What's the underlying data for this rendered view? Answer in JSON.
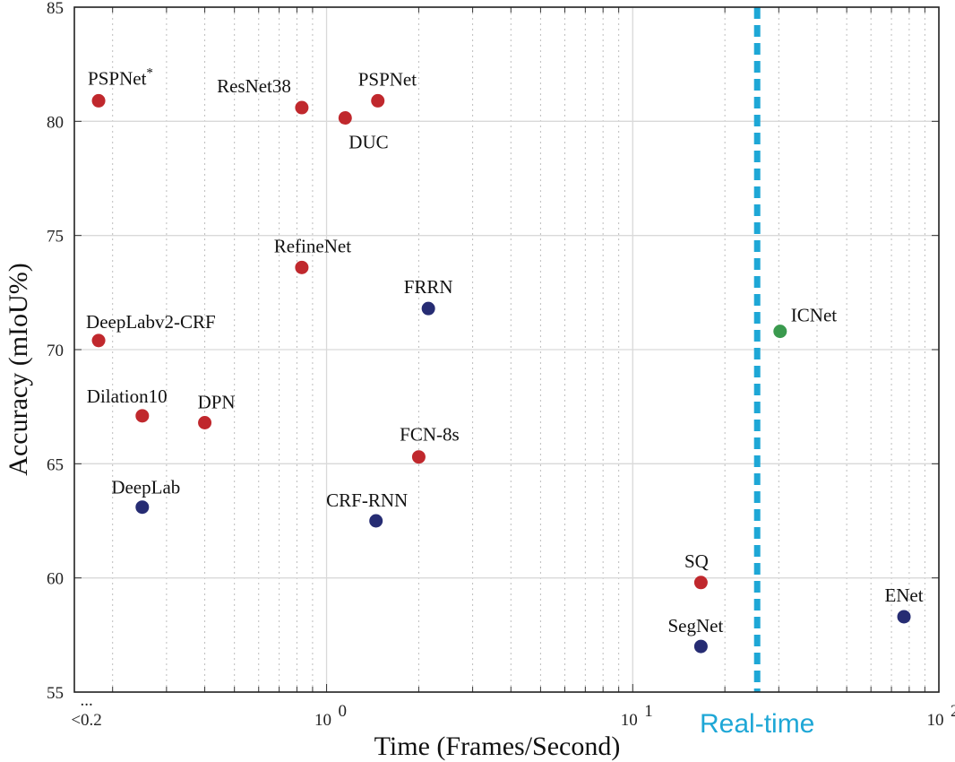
{
  "chart_data": {
    "type": "scatter",
    "xscale": "log",
    "xlim": [
      0.15,
      100
    ],
    "ylim": [
      55,
      85
    ],
    "xlabel": "Time (Frames/Second)",
    "ylabel": "Accuracy (mIoU%)",
    "grid": true,
    "x_ticks": [
      {
        "value": 0.16,
        "label": "<0.2"
      },
      {
        "value": 1,
        "label": "10",
        "exp": "0"
      },
      {
        "value": 10,
        "label": "10",
        "exp": "1"
      },
      {
        "value": 100,
        "label": "10",
        "exp": "2"
      }
    ],
    "x_ellipsis_label": "...",
    "y_ticks": [
      55,
      60,
      65,
      70,
      75,
      80,
      85
    ],
    "realtime": {
      "x": 25.5,
      "label": "Real-time",
      "color": "#1ea7d6"
    },
    "colors": {
      "red": "#c0282d",
      "blue": "#262c73",
      "green": "#3a9a4e"
    },
    "points": [
      {
        "name": "PSPNet",
        "sup": "*",
        "x": 0.18,
        "y": 80.9,
        "color": "red",
        "lx": -12,
        "ly": -18,
        "anchor": "start"
      },
      {
        "name": "ResNet38",
        "x": 0.83,
        "y": 80.6,
        "color": "red",
        "lx": -12,
        "ly": -17,
        "anchor": "end"
      },
      {
        "name": "PSPNet",
        "x": 1.47,
        "y": 80.9,
        "color": "red",
        "lx": -22,
        "ly": -17,
        "anchor": "start"
      },
      {
        "name": "DUC",
        "x": 1.15,
        "y": 80.15,
        "color": "red",
        "lx": 4,
        "ly": 34,
        "anchor": "start"
      },
      {
        "name": "RefineNet",
        "x": 0.83,
        "y": 73.6,
        "color": "red",
        "lx": 12,
        "ly": -17,
        "anchor": "middle"
      },
      {
        "name": "FRRN",
        "x": 2.15,
        "y": 71.8,
        "color": "blue",
        "lx": 0,
        "ly": -17,
        "anchor": "middle"
      },
      {
        "name": "DeepLabv2-CRF",
        "x": 0.18,
        "y": 70.4,
        "color": "red",
        "lx": -14,
        "ly": -14,
        "anchor": "start"
      },
      {
        "name": "ICNet",
        "x": 30.3,
        "y": 70.8,
        "color": "green",
        "lx": 12,
        "ly": -11,
        "anchor": "start"
      },
      {
        "name": "Dilation10",
        "x": 0.25,
        "y": 67.1,
        "color": "red",
        "lx": -62,
        "ly": -15,
        "anchor": "start"
      },
      {
        "name": "DPN",
        "x": 0.4,
        "y": 66.8,
        "color": "red",
        "lx": -8,
        "ly": -16,
        "anchor": "start"
      },
      {
        "name": "FCN-8s",
        "x": 2.0,
        "y": 65.3,
        "color": "red",
        "lx": 12,
        "ly": -18,
        "anchor": "middle"
      },
      {
        "name": "DeepLab",
        "x": 0.25,
        "y": 63.1,
        "color": "blue",
        "lx": 4,
        "ly": -15,
        "anchor": "middle"
      },
      {
        "name": "CRF-RNN",
        "x": 1.45,
        "y": 62.5,
        "color": "blue",
        "lx": -10,
        "ly": -16,
        "anchor": "middle"
      },
      {
        "name": "SQ",
        "x": 16.7,
        "y": 59.8,
        "color": "red",
        "lx": -5,
        "ly": -17,
        "anchor": "middle"
      },
      {
        "name": "SegNet",
        "x": 16.7,
        "y": 57.0,
        "color": "blue",
        "lx": -6,
        "ly": -16,
        "anchor": "middle"
      },
      {
        "name": "ENet",
        "x": 76.9,
        "y": 58.3,
        "color": "blue",
        "lx": 0,
        "ly": -17,
        "anchor": "middle"
      }
    ]
  }
}
